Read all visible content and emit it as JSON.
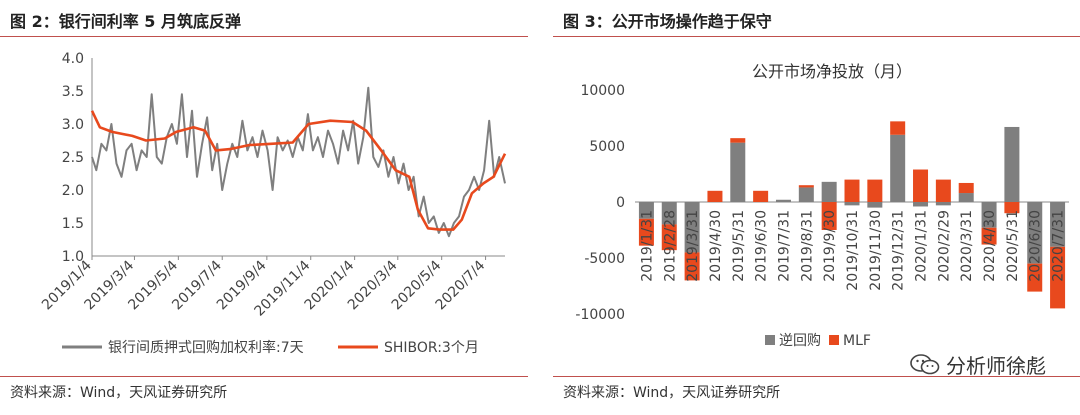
{
  "left": {
    "title": "图 2：银行间利率 5 月筑底反弹",
    "source": "资料来源：Wind，天风证券研究所"
  },
  "right": {
    "title": "图 3：公开市场操作趋于保守",
    "source": "资料来源：Wind，天风证券研究所"
  },
  "watermark": {
    "text": "分析师徐彪",
    "icon": "wechat-icon"
  },
  "chart_data": [
    {
      "type": "line",
      "title": "",
      "ylim": [
        1.0,
        4.0
      ],
      "yticks": [
        "4.0",
        "3.5",
        "3.0",
        "2.5",
        "2.0",
        "1.5",
        "1.0"
      ],
      "xlim": [
        "2019-01-04",
        "2020-07-31"
      ],
      "xticks": [
        "2019/1/4",
        "2019/3/4",
        "2019/5/4",
        "2019/7/4",
        "2019/9/4",
        "2019/11/4",
        "2020/1/4",
        "2020/3/4",
        "2020/5/4",
        "2020/7/4"
      ],
      "legend": "bottom",
      "series": [
        {
          "name": "银行间质押式回购加权利率:7天",
          "color": "#7f7f7f",
          "points": [
            [
              "2019-01-04",
              2.5
            ],
            [
              "2019-01-10",
              2.3
            ],
            [
              "2019-01-17",
              2.7
            ],
            [
              "2019-01-24",
              2.6
            ],
            [
              "2019-01-31",
              3.0
            ],
            [
              "2019-02-07",
              2.4
            ],
            [
              "2019-02-14",
              2.2
            ],
            [
              "2019-02-21",
              2.6
            ],
            [
              "2019-02-28",
              2.7
            ],
            [
              "2019-03-07",
              2.3
            ],
            [
              "2019-03-14",
              2.6
            ],
            [
              "2019-03-21",
              2.5
            ],
            [
              "2019-03-28",
              3.45
            ],
            [
              "2019-04-04",
              2.5
            ],
            [
              "2019-04-11",
              2.4
            ],
            [
              "2019-04-18",
              2.8
            ],
            [
              "2019-04-25",
              3.0
            ],
            [
              "2019-05-02",
              2.7
            ],
            [
              "2019-05-09",
              3.45
            ],
            [
              "2019-05-16",
              2.5
            ],
            [
              "2019-05-23",
              3.2
            ],
            [
              "2019-05-30",
              2.2
            ],
            [
              "2019-06-06",
              2.7
            ],
            [
              "2019-06-13",
              3.1
            ],
            [
              "2019-06-20",
              2.3
            ],
            [
              "2019-06-27",
              2.7
            ],
            [
              "2019-07-04",
              2.0
            ],
            [
              "2019-07-11",
              2.4
            ],
            [
              "2019-07-18",
              2.7
            ],
            [
              "2019-07-25",
              2.5
            ],
            [
              "2019-08-01",
              3.05
            ],
            [
              "2019-08-08",
              2.6
            ],
            [
              "2019-08-15",
              2.8
            ],
            [
              "2019-08-22",
              2.5
            ],
            [
              "2019-08-29",
              2.9
            ],
            [
              "2019-09-05",
              2.6
            ],
            [
              "2019-09-12",
              2.0
            ],
            [
              "2019-09-19",
              2.8
            ],
            [
              "2019-09-26",
              2.6
            ],
            [
              "2019-10-03",
              2.75
            ],
            [
              "2019-10-10",
              2.5
            ],
            [
              "2019-10-17",
              2.8
            ],
            [
              "2019-10-24",
              2.6
            ],
            [
              "2019-10-31",
              3.15
            ],
            [
              "2019-11-07",
              2.6
            ],
            [
              "2019-11-14",
              2.8
            ],
            [
              "2019-11-21",
              2.5
            ],
            [
              "2019-11-28",
              2.9
            ],
            [
              "2019-12-05",
              2.7
            ],
            [
              "2019-12-12",
              2.4
            ],
            [
              "2019-12-19",
              2.9
            ],
            [
              "2019-12-26",
              2.6
            ],
            [
              "2020-01-02",
              3.05
            ],
            [
              "2020-01-09",
              2.4
            ],
            [
              "2020-01-16",
              2.8
            ],
            [
              "2020-01-23",
              3.55
            ],
            [
              "2020-01-30",
              2.5
            ],
            [
              "2020-02-06",
              2.35
            ],
            [
              "2020-02-13",
              2.6
            ],
            [
              "2020-02-20",
              2.2
            ],
            [
              "2020-02-27",
              2.5
            ],
            [
              "2020-03-05",
              2.1
            ],
            [
              "2020-03-12",
              2.4
            ],
            [
              "2020-03-19",
              2.0
            ],
            [
              "2020-03-26",
              2.2
            ],
            [
              "2020-04-02",
              1.6
            ],
            [
              "2020-04-09",
              1.9
            ],
            [
              "2020-04-16",
              1.5
            ],
            [
              "2020-04-23",
              1.6
            ],
            [
              "2020-04-30",
              1.35
            ],
            [
              "2020-05-07",
              1.5
            ],
            [
              "2020-05-14",
              1.3
            ],
            [
              "2020-05-21",
              1.5
            ],
            [
              "2020-05-28",
              1.6
            ],
            [
              "2020-06-04",
              1.9
            ],
            [
              "2020-06-11",
              2.0
            ],
            [
              "2020-06-18",
              2.2
            ],
            [
              "2020-06-25",
              2.0
            ],
            [
              "2020-07-02",
              2.3
            ],
            [
              "2020-07-09",
              3.05
            ],
            [
              "2020-07-16",
              2.2
            ],
            [
              "2020-07-23",
              2.5
            ],
            [
              "2020-07-31",
              2.1
            ]
          ]
        },
        {
          "name": "SHIBOR:3个月",
          "color": "#e8491d",
          "points": [
            [
              "2019-01-04",
              3.2
            ],
            [
              "2019-01-15",
              2.95
            ],
            [
              "2019-02-01",
              2.88
            ],
            [
              "2019-03-01",
              2.82
            ],
            [
              "2019-03-20",
              2.75
            ],
            [
              "2019-04-15",
              2.78
            ],
            [
              "2019-05-01",
              2.88
            ],
            [
              "2019-05-25",
              2.95
            ],
            [
              "2019-06-10",
              2.9
            ],
            [
              "2019-06-25",
              2.6
            ],
            [
              "2019-07-15",
              2.62
            ],
            [
              "2019-08-10",
              2.68
            ],
            [
              "2019-09-10",
              2.7
            ],
            [
              "2019-10-10",
              2.72
            ],
            [
              "2019-11-01",
              3.0
            ],
            [
              "2019-12-01",
              3.05
            ],
            [
              "2020-01-01",
              3.03
            ],
            [
              "2020-01-20",
              2.9
            ],
            [
              "2020-02-10",
              2.6
            ],
            [
              "2020-03-01",
              2.3
            ],
            [
              "2020-03-20",
              2.2
            ],
            [
              "2020-04-01",
              1.7
            ],
            [
              "2020-04-15",
              1.42
            ],
            [
              "2020-05-01",
              1.4
            ],
            [
              "2020-05-20",
              1.4
            ],
            [
              "2020-06-01",
              1.55
            ],
            [
              "2020-06-15",
              1.95
            ],
            [
              "2020-07-01",
              2.1
            ],
            [
              "2020-07-15",
              2.2
            ],
            [
              "2020-07-31",
              2.55
            ]
          ]
        }
      ]
    },
    {
      "type": "bar",
      "stacked": true,
      "title": "公开市场净投放（月）",
      "ylim": [
        -10000,
        10000
      ],
      "yticks": [
        "10000",
        "5000",
        "0",
        "-5000",
        "-10000"
      ],
      "categories": [
        "2019/1/31",
        "2019/2/28",
        "2019/3/31",
        "2019/4/30",
        "2019/5/31",
        "2019/6/30",
        "2019/7/31",
        "2019/8/31",
        "2019/9/30",
        "2019/10/31",
        "2019/11/30",
        "2019/12/31",
        "2020/1/31",
        "2020/2/29",
        "2020/3/31",
        "2020/4/30",
        "2020/5/31",
        "2020/6/30",
        "2020/7/31"
      ],
      "legend": "bottom",
      "series": [
        {
          "name": "逆回购",
          "color": "#7f7f7f",
          "values": [
            -1500,
            -2000,
            -4500,
            0,
            5300,
            0,
            200,
            1300,
            1800,
            -300,
            -500,
            6000,
            -400,
            -300,
            800,
            -2300,
            6700,
            -5500,
            -4000
          ]
        },
        {
          "name": "MLF",
          "color": "#e8491d",
          "values": [
            -2400,
            -2300,
            -2500,
            1000,
            400,
            1000,
            0,
            200,
            -2500,
            2000,
            2000,
            1200,
            2900,
            2000,
            900,
            -1500,
            -1000,
            -2500,
            -5500
          ]
        }
      ]
    }
  ]
}
